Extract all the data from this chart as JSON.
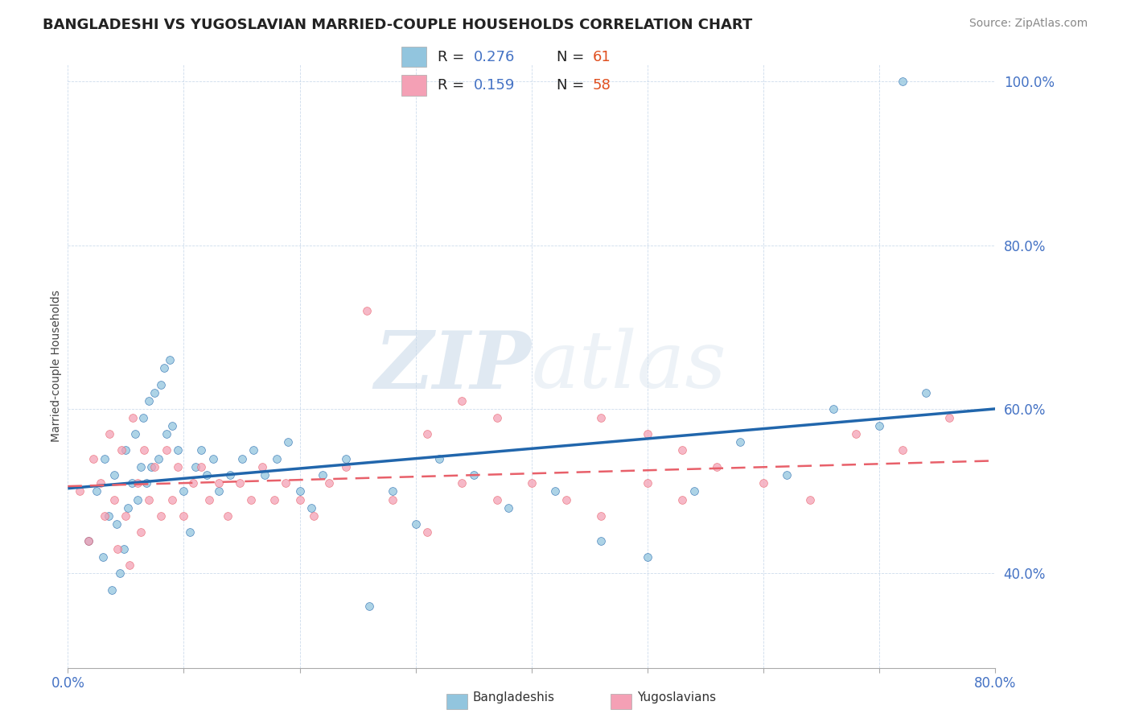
{
  "title": "BANGLADESHI VS YUGOSLAVIAN MARRIED-COUPLE HOUSEHOLDS CORRELATION CHART",
  "source": "Source: ZipAtlas.com",
  "ylabel": "Married-couple Households",
  "xlim": [
    0.0,
    0.8
  ],
  "ylim": [
    0.285,
    1.02
  ],
  "xticks": [
    0.0,
    0.1,
    0.2,
    0.3,
    0.4,
    0.5,
    0.6,
    0.7,
    0.8
  ],
  "yticks": [
    0.4,
    0.6,
    0.8,
    1.0
  ],
  "r_bangladeshi": 0.276,
  "n_bangladeshi": 61,
  "r_yugoslavian": 0.159,
  "n_yugoslavian": 58,
  "color_bangladeshi": "#92c5de",
  "color_yugoslavian": "#f4a0b5",
  "color_trend_bangladeshi": "#2166ac",
  "color_trend_yugoslavian": "#e8606a",
  "watermark_zip": "ZIP",
  "watermark_atlas": "atlas",
  "bangladeshi_x": [
    0.018,
    0.025,
    0.03,
    0.032,
    0.035,
    0.038,
    0.04,
    0.042,
    0.045,
    0.048,
    0.05,
    0.052,
    0.055,
    0.058,
    0.06,
    0.063,
    0.065,
    0.068,
    0.07,
    0.072,
    0.075,
    0.078,
    0.08,
    0.083,
    0.085,
    0.088,
    0.09,
    0.095,
    0.1,
    0.105,
    0.11,
    0.115,
    0.12,
    0.125,
    0.13,
    0.14,
    0.15,
    0.16,
    0.17,
    0.18,
    0.19,
    0.2,
    0.21,
    0.22,
    0.24,
    0.26,
    0.28,
    0.3,
    0.32,
    0.35,
    0.38,
    0.42,
    0.46,
    0.5,
    0.54,
    0.58,
    0.62,
    0.66,
    0.7,
    0.74,
    0.72
  ],
  "bangladeshi_y": [
    0.44,
    0.5,
    0.42,
    0.54,
    0.47,
    0.38,
    0.52,
    0.46,
    0.4,
    0.43,
    0.55,
    0.48,
    0.51,
    0.57,
    0.49,
    0.53,
    0.59,
    0.51,
    0.61,
    0.53,
    0.62,
    0.54,
    0.63,
    0.65,
    0.57,
    0.66,
    0.58,
    0.55,
    0.5,
    0.45,
    0.53,
    0.55,
    0.52,
    0.54,
    0.5,
    0.52,
    0.54,
    0.55,
    0.52,
    0.54,
    0.56,
    0.5,
    0.48,
    0.52,
    0.54,
    0.36,
    0.5,
    0.46,
    0.54,
    0.52,
    0.48,
    0.5,
    0.44,
    0.42,
    0.5,
    0.56,
    0.52,
    0.6,
    0.58,
    0.62,
    1.0
  ],
  "yugoslavian_x": [
    0.01,
    0.018,
    0.022,
    0.028,
    0.032,
    0.036,
    0.04,
    0.043,
    0.046,
    0.05,
    0.053,
    0.056,
    0.06,
    0.063,
    0.066,
    0.07,
    0.075,
    0.08,
    0.085,
    0.09,
    0.095,
    0.1,
    0.108,
    0.115,
    0.122,
    0.13,
    0.138,
    0.148,
    0.158,
    0.168,
    0.178,
    0.188,
    0.2,
    0.212,
    0.225,
    0.24,
    0.258,
    0.28,
    0.31,
    0.34,
    0.37,
    0.4,
    0.43,
    0.46,
    0.5,
    0.53,
    0.56,
    0.6,
    0.64,
    0.68,
    0.72,
    0.76,
    0.5,
    0.53,
    0.46,
    0.31,
    0.34,
    0.37
  ],
  "yugoslavian_y": [
    0.5,
    0.44,
    0.54,
    0.51,
    0.47,
    0.57,
    0.49,
    0.43,
    0.55,
    0.47,
    0.41,
    0.59,
    0.51,
    0.45,
    0.55,
    0.49,
    0.53,
    0.47,
    0.55,
    0.49,
    0.53,
    0.47,
    0.51,
    0.53,
    0.49,
    0.51,
    0.47,
    0.51,
    0.49,
    0.53,
    0.49,
    0.51,
    0.49,
    0.47,
    0.51,
    0.53,
    0.72,
    0.49,
    0.45,
    0.51,
    0.49,
    0.51,
    0.49,
    0.47,
    0.51,
    0.49,
    0.53,
    0.51,
    0.49,
    0.57,
    0.55,
    0.59,
    0.57,
    0.55,
    0.59,
    0.57,
    0.61,
    0.59
  ]
}
